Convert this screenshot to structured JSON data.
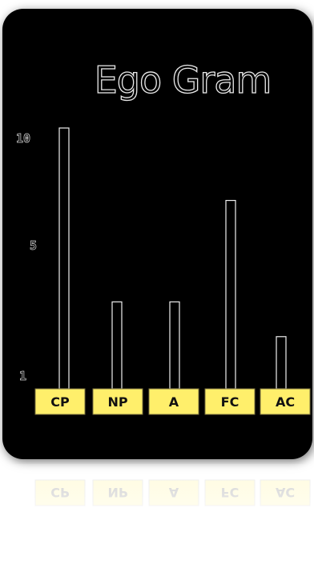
{
  "chart_data": {
    "type": "bar",
    "title": "Ego Gram",
    "categories": [
      "CP",
      "NP",
      "A",
      "FC",
      "AC"
    ],
    "values": [
      10,
      4,
      4,
      7.5,
      2.8
    ],
    "yticks": [
      "1",
      "5",
      "10"
    ],
    "ylim": [
      1,
      10
    ],
    "grid": false,
    "legend": "none"
  },
  "colors": {
    "panel": "#000000",
    "bar_outline": "#f0f0f0",
    "label_fill": "#ffef6b",
    "title_outline": "#e8e8e8"
  }
}
